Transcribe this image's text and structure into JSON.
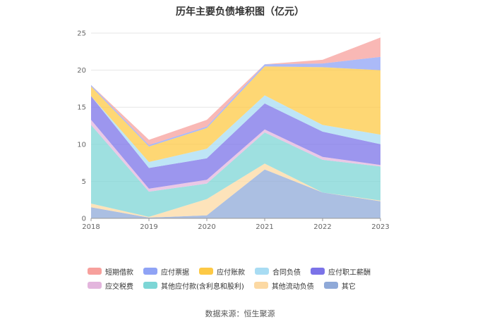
{
  "chart_data": {
    "type": "area",
    "title": "历年主要负债堆积图（亿元）",
    "stacked": true,
    "x": [
      "2018",
      "2019",
      "2020",
      "2021",
      "2022",
      "2023"
    ],
    "yticks": [
      0,
      5,
      10,
      15,
      20,
      25
    ],
    "ylim": [
      0,
      25
    ],
    "grid": true,
    "legend_position": "bottom",
    "series": [
      {
        "name": "其它",
        "color": "#8fa9d8",
        "values": [
          1.5,
          0.1,
          0.4,
          6.6,
          3.5,
          2.3
        ]
      },
      {
        "name": "其他流动负债",
        "color": "#fcd9a3",
        "values": [
          0.5,
          0.1,
          2.2,
          0.8,
          0.0,
          0.1
        ]
      },
      {
        "name": "其他应付款(含利息和股利)",
        "color": "#7dd6d6",
        "values": [
          10.6,
          3.4,
          2.1,
          4.2,
          4.4,
          4.6
        ]
      },
      {
        "name": "应交税费",
        "color": "#e3b5dd",
        "values": [
          0.7,
          0.4,
          0.5,
          0.4,
          0.4,
          0.2
        ]
      },
      {
        "name": "应付职工薪酬",
        "color": "#7b73e8",
        "values": [
          3.2,
          2.8,
          2.9,
          3.5,
          3.4,
          2.8
        ]
      },
      {
        "name": "合同负债",
        "color": "#a8dcf3",
        "values": [
          0.0,
          0.8,
          1.3,
          1.1,
          0.9,
          1.3
        ]
      },
      {
        "name": "应付账款",
        "color": "#fdc945",
        "values": [
          1.3,
          2.1,
          2.8,
          3.9,
          7.8,
          8.7
        ]
      },
      {
        "name": "应付票据",
        "color": "#8fa3f5",
        "values": [
          0.2,
          0.2,
          0.2,
          0.3,
          0.5,
          1.8
        ]
      },
      {
        "name": "短期借款",
        "color": "#f7a09c",
        "values": [
          0.0,
          0.7,
          0.9,
          0.0,
          0.5,
          2.6
        ]
      }
    ]
  },
  "legend_order": [
    "短期借款",
    "应付票据",
    "应付账款",
    "合同负债",
    "应付职工薪酬",
    "应交税费",
    "其他应付款(含利息和股利)",
    "其他流动负债",
    "其它"
  ],
  "source_text": "数据来源：恒生聚源"
}
